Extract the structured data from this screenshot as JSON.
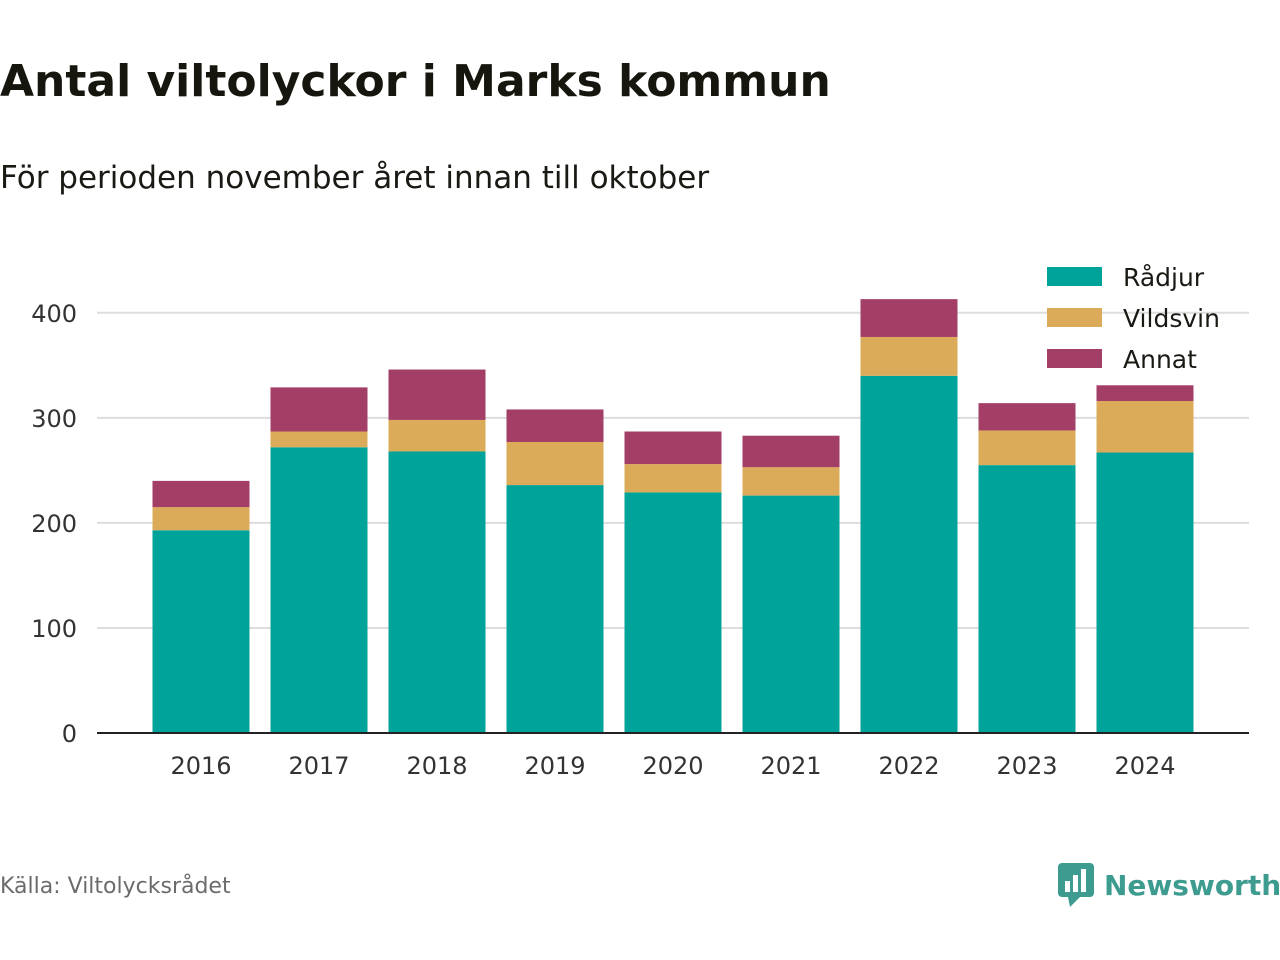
{
  "header": {
    "title": "Antal viltolyckor i Marks kommun",
    "subtitle": "För perioden november året innan till oktober"
  },
  "footer": {
    "source": "Källa: Viltolycksrådet",
    "brand": "Newsworthy",
    "brand_icon": "bar-chart-speech-bubble-icon",
    "brand_color": "#3d9b8f"
  },
  "chart_data": {
    "type": "bar",
    "stacked": true,
    "categories": [
      "2016",
      "2017",
      "2018",
      "2019",
      "2020",
      "2021",
      "2022",
      "2023",
      "2024"
    ],
    "series": [
      {
        "name": "Rådjur",
        "color": "#00a39a",
        "values": [
          193,
          272,
          268,
          236,
          229,
          226,
          340,
          255,
          267
        ]
      },
      {
        "name": "Vildsvin",
        "color": "#dbab5a",
        "values": [
          22,
          15,
          30,
          41,
          27,
          27,
          37,
          33,
          49
        ]
      },
      {
        "name": "Annat",
        "color": "#a33e67",
        "values": [
          25,
          42,
          48,
          31,
          31,
          30,
          36,
          26,
          15
        ]
      }
    ],
    "ylim": [
      0,
      450
    ],
    "yticks": [
      0,
      100,
      200,
      300,
      400
    ],
    "xlabel": "",
    "ylabel": "",
    "grid": true,
    "legend_position": "top-right"
  }
}
